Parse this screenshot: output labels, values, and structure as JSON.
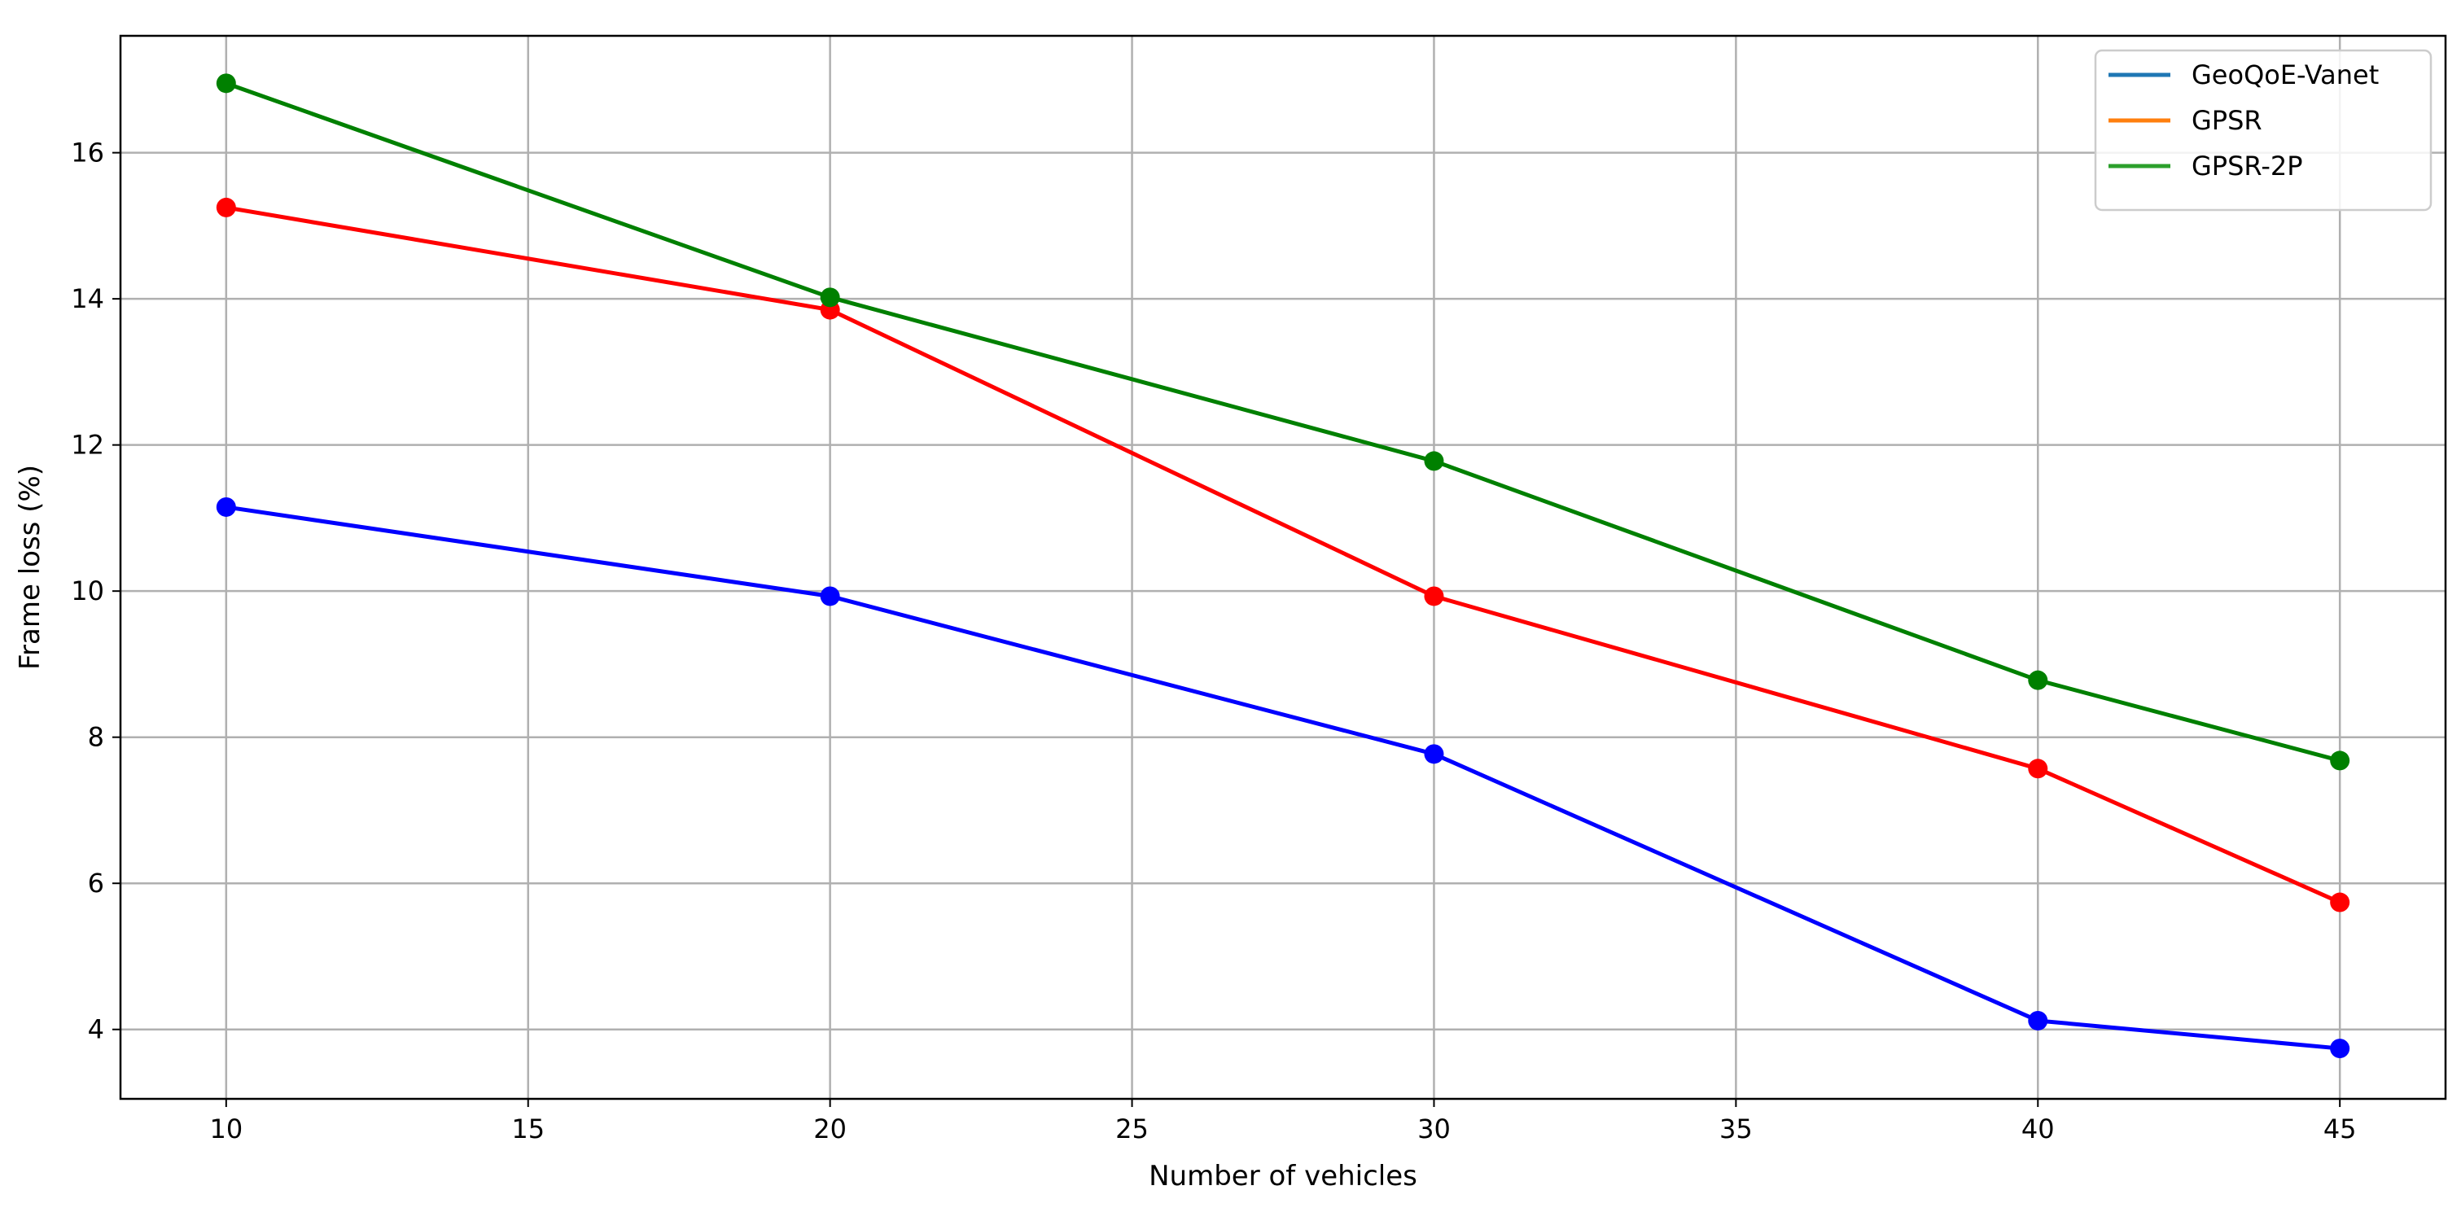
{
  "chart_data": {
    "type": "line",
    "xlabel": "Number of vehicles",
    "ylabel": "Frame loss (%)",
    "xlim": [
      8.25,
      46.75
    ],
    "ylim": [
      3.05,
      17.6
    ],
    "xticks": [
      10,
      15,
      20,
      25,
      30,
      35,
      40,
      45
    ],
    "yticks": [
      4,
      6,
      8,
      10,
      12,
      14,
      16
    ],
    "grid": true,
    "legend_position": "top-right",
    "x": [
      10,
      20,
      30,
      40,
      45
    ],
    "series": [
      {
        "name": "GeoQoE-Vanet",
        "legend_color": "#1f77b4",
        "line_color": "#0000ff",
        "values": [
          11.15,
          9.93,
          7.77,
          4.12,
          3.74
        ]
      },
      {
        "name": "GPSR",
        "legend_color": "#ff7f0e",
        "line_color": "#ff0000",
        "values": [
          15.25,
          13.85,
          9.93,
          7.57,
          5.74
        ]
      },
      {
        "name": "GPSR-2P",
        "legend_color": "#2ca02c",
        "line_color": "#008000",
        "values": [
          16.95,
          14.02,
          11.78,
          8.78,
          7.68
        ]
      }
    ]
  }
}
